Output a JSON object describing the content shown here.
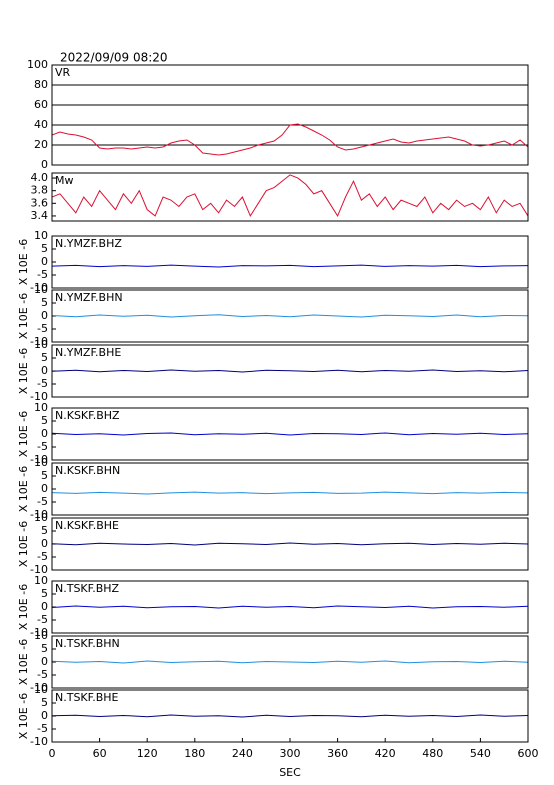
{
  "chart_data": [
    {
      "type": "line",
      "title": "2022/09/09 08:20",
      "panel_label": "VR",
      "grid": true,
      "xlim": [
        0,
        600
      ],
      "ylim": [
        0,
        100
      ],
      "yticks": [
        0,
        20,
        40,
        60,
        80,
        100
      ],
      "x": [
        0,
        10,
        20,
        30,
        40,
        50,
        60,
        70,
        80,
        90,
        100,
        110,
        120,
        130,
        140,
        150,
        160,
        170,
        180,
        190,
        200,
        210,
        220,
        230,
        240,
        250,
        260,
        270,
        280,
        290,
        300,
        310,
        320,
        330,
        340,
        350,
        360,
        370,
        380,
        390,
        400,
        410,
        420,
        430,
        440,
        450,
        460,
        470,
        480,
        490,
        500,
        510,
        520,
        530,
        540,
        550,
        560,
        570,
        580,
        590,
        600
      ],
      "series": [
        {
          "color": "#dd1133",
          "values": [
            30,
            33,
            31,
            30,
            28,
            25,
            17,
            16,
            17,
            17,
            16,
            17,
            18,
            17,
            18,
            22,
            24,
            25,
            20,
            12,
            11,
            10,
            11,
            13,
            15,
            17,
            20,
            22,
            24,
            30,
            40,
            41,
            38,
            34,
            30,
            25,
            18,
            15,
            16,
            18,
            20,
            22,
            24,
            26,
            23,
            22,
            24,
            25,
            26,
            27,
            28,
            26,
            24,
            20,
            19,
            20,
            22,
            24,
            20,
            25,
            18
          ]
        }
      ]
    },
    {
      "type": "line",
      "panel_label": "Mw",
      "grid": false,
      "xlim": [
        0,
        600
      ],
      "ylim": [
        3.32,
        4.08
      ],
      "yticks": [
        3.4,
        3.6,
        3.8,
        {
          "value": 4,
          "label": "4.0"
        }
      ],
      "x": [
        0,
        10,
        20,
        30,
        40,
        50,
        60,
        70,
        80,
        90,
        100,
        110,
        120,
        130,
        140,
        150,
        160,
        170,
        180,
        190,
        200,
        210,
        220,
        230,
        240,
        250,
        260,
        270,
        280,
        290,
        300,
        310,
        320,
        330,
        340,
        350,
        360,
        370,
        380,
        390,
        400,
        410,
        420,
        430,
        440,
        450,
        460,
        470,
        480,
        490,
        500,
        510,
        520,
        530,
        540,
        550,
        560,
        570,
        580,
        590,
        600
      ],
      "series": [
        {
          "color": "#dd1133",
          "values": [
            3.7,
            3.75,
            3.6,
            3.45,
            3.7,
            3.55,
            3.8,
            3.65,
            3.5,
            3.75,
            3.6,
            3.8,
            3.5,
            3.4,
            3.7,
            3.65,
            3.55,
            3.7,
            3.75,
            3.5,
            3.6,
            3.45,
            3.65,
            3.55,
            3.7,
            3.4,
            3.6,
            3.8,
            3.85,
            3.95,
            4.05,
            4.0,
            3.9,
            3.75,
            3.8,
            3.6,
            3.4,
            3.7,
            3.95,
            3.65,
            3.75,
            3.55,
            3.7,
            3.5,
            3.65,
            3.6,
            3.55,
            3.7,
            3.45,
            3.6,
            3.5,
            3.65,
            3.55,
            3.6,
            3.5,
            3.7,
            3.45,
            3.65,
            3.55,
            3.6,
            3.4
          ]
        }
      ]
    },
    {
      "type": "line",
      "panel_label": "N.YMZF.BHZ",
      "ylabel": "X 10E -6",
      "xlim": [
        0,
        600
      ],
      "ylim": [
        -10,
        10
      ],
      "yticks": [
        -10,
        -5,
        0,
        5,
        10
      ],
      "x": [
        0,
        30,
        60,
        90,
        120,
        150,
        180,
        210,
        240,
        270,
        300,
        330,
        360,
        390,
        420,
        450,
        480,
        510,
        540,
        570,
        600
      ],
      "series": [
        {
          "color": "#0000cc",
          "values": [
            -1.6,
            -1.3,
            -1.8,
            -1.4,
            -1.7,
            -1.2,
            -1.6,
            -1.9,
            -1.4,
            -1.5,
            -1.3,
            -1.8,
            -1.5,
            -1.2,
            -1.7,
            -1.4,
            -1.6,
            -1.3,
            -1.8,
            -1.5,
            -1.4
          ]
        }
      ]
    },
    {
      "type": "line",
      "panel_label": "N.YMZF.BHN",
      "ylabel": "X 10E -6",
      "xlim": [
        0,
        600
      ],
      "ylim": [
        -10,
        10
      ],
      "yticks": [
        -10,
        -5,
        0,
        5,
        10
      ],
      "x": [
        0,
        30,
        60,
        90,
        120,
        150,
        180,
        210,
        240,
        270,
        300,
        330,
        360,
        390,
        420,
        450,
        480,
        510,
        540,
        570,
        600
      ],
      "series": [
        {
          "color": "#1f8fe0",
          "values": [
            0.2,
            -0.3,
            0.4,
            -0.1,
            0.3,
            -0.4,
            0.1,
            0.5,
            -0.2,
            0.2,
            -0.3,
            0.4,
            0,
            -0.4,
            0.3,
            0.1,
            -0.2,
            0.4,
            -0.3,
            0.2,
            0.1
          ]
        }
      ]
    },
    {
      "type": "line",
      "panel_label": "N.YMZF.BHE",
      "ylabel": "X 10E -6",
      "xlim": [
        0,
        600
      ],
      "ylim": [
        -10,
        10
      ],
      "yticks": [
        -10,
        -5,
        0,
        5,
        10
      ],
      "x": [
        0,
        30,
        60,
        90,
        120,
        150,
        180,
        210,
        240,
        270,
        300,
        330,
        360,
        390,
        420,
        450,
        480,
        510,
        540,
        570,
        600
      ],
      "series": [
        {
          "color": "#000080",
          "values": [
            -0.1,
            0.3,
            -0.3,
            0.2,
            -0.2,
            0.4,
            -0.1,
            0.2,
            -0.4,
            0.3,
            0.1,
            -0.2,
            0.3,
            -0.3,
            0.2,
            -0.1,
            0.4,
            -0.2,
            0.1,
            -0.3,
            0.2
          ]
        }
      ]
    },
    {
      "type": "line",
      "panel_label": "N.KSKF.BHZ",
      "ylabel": "X 10E -6",
      "xlim": [
        0,
        600
      ],
      "ylim": [
        -10,
        10
      ],
      "yticks": [
        -10,
        -5,
        0,
        5,
        10
      ],
      "x": [
        0,
        30,
        60,
        90,
        120,
        150,
        180,
        210,
        240,
        270,
        300,
        330,
        360,
        390,
        420,
        450,
        480,
        510,
        540,
        570,
        600
      ],
      "series": [
        {
          "color": "#0000cc",
          "values": [
            0.3,
            -0.2,
            0.1,
            -0.4,
            0.2,
            0.4,
            -0.3,
            0.1,
            -0.1,
            0.3,
            -0.4,
            0.2,
            0.1,
            -0.2,
            0.4,
            -0.3,
            0.2,
            -0.1,
            0.3,
            -0.2,
            0.1
          ]
        }
      ]
    },
    {
      "type": "line",
      "panel_label": "N.KSKF.BHN",
      "ylabel": "X 10E -6",
      "xlim": [
        0,
        600
      ],
      "ylim": [
        -10,
        10
      ],
      "yticks": [
        -10,
        -5,
        0,
        5,
        10
      ],
      "x": [
        0,
        30,
        60,
        90,
        120,
        150,
        180,
        210,
        240,
        270,
        300,
        330,
        360,
        390,
        420,
        450,
        480,
        510,
        540,
        570,
        600
      ],
      "series": [
        {
          "color": "#1f8fe0",
          "values": [
            -1.4,
            -1.7,
            -1.3,
            -1.6,
            -1.9,
            -1.5,
            -1.2,
            -1.6,
            -1.4,
            -1.8,
            -1.5,
            -1.3,
            -1.7,
            -1.6,
            -1.2,
            -1.5,
            -1.8,
            -1.4,
            -1.6,
            -1.3,
            -1.5
          ]
        }
      ]
    },
    {
      "type": "line",
      "panel_label": "N.KSKF.BHE",
      "ylabel": "X 10E -6",
      "xlim": [
        0,
        600
      ],
      "ylim": [
        -10,
        10
      ],
      "yticks": [
        -10,
        -5,
        0,
        5,
        10
      ],
      "x": [
        0,
        30,
        60,
        90,
        120,
        150,
        180,
        210,
        240,
        270,
        300,
        330,
        360,
        390,
        420,
        450,
        480,
        510,
        540,
        570,
        600
      ],
      "series": [
        {
          "color": "#000080",
          "values": [
            0.1,
            -0.3,
            0.3,
            0,
            -0.2,
            0.2,
            -0.4,
            0.3,
            0.1,
            -0.2,
            0.4,
            -0.1,
            0.2,
            -0.3,
            0.1,
            0.3,
            -0.2,
            0.2,
            -0.1,
            0.3,
            0
          ]
        }
      ]
    },
    {
      "type": "line",
      "panel_label": "N.TSKF.BHZ",
      "ylabel": "X 10E -6",
      "xlim": [
        0,
        600
      ],
      "ylim": [
        -10,
        10
      ],
      "yticks": [
        -10,
        -5,
        0,
        5,
        10
      ],
      "x": [
        0,
        30,
        60,
        90,
        120,
        150,
        180,
        210,
        240,
        270,
        300,
        330,
        360,
        390,
        420,
        450,
        480,
        510,
        540,
        570,
        600
      ],
      "series": [
        {
          "color": "#0000cc",
          "values": [
            -0.2,
            0.4,
            -0.1,
            0.3,
            -0.3,
            0.1,
            0.2,
            -0.4,
            0.3,
            -0.1,
            0.2,
            -0.3,
            0.4,
            0.1,
            -0.2,
            0.3,
            -0.4,
            0.1,
            0.2,
            -0.1,
            0.3
          ]
        }
      ]
    },
    {
      "type": "line",
      "panel_label": "N.TSKF.BHN",
      "ylabel": "X 10E -6",
      "xlim": [
        0,
        600
      ],
      "ylim": [
        -10,
        10
      ],
      "yticks": [
        -10,
        -5,
        0,
        5,
        10
      ],
      "x": [
        0,
        30,
        60,
        90,
        120,
        150,
        180,
        210,
        240,
        270,
        300,
        330,
        360,
        390,
        420,
        450,
        480,
        510,
        540,
        570,
        600
      ],
      "series": [
        {
          "color": "#1f8fe0",
          "values": [
            0.3,
            -0.1,
            0.2,
            -0.4,
            0.4,
            -0.2,
            0.1,
            0.3,
            -0.3,
            0.2,
            0,
            -0.2,
            0.3,
            -0.1,
            0.4,
            -0.3,
            0.1,
            0.2,
            -0.2,
            0.3,
            -0.1
          ]
        }
      ]
    },
    {
      "type": "line",
      "panel_label": "N.TSKF.BHE",
      "ylabel": "X 10E -6",
      "xlabel": "SEC",
      "xlim": [
        0,
        600
      ],
      "ylim": [
        -10,
        10
      ],
      "yticks": [
        -10,
        -5,
        0,
        5,
        10
      ],
      "xticks": [
        0,
        60,
        120,
        180,
        240,
        300,
        360,
        420,
        480,
        540,
        600
      ],
      "x": [
        0,
        30,
        60,
        90,
        120,
        150,
        180,
        210,
        240,
        270,
        300,
        330,
        360,
        390,
        420,
        450,
        480,
        510,
        540,
        570,
        600
      ],
      "series": [
        {
          "color": "#000080",
          "values": [
            0.1,
            0.3,
            -0.2,
            0.2,
            -0.3,
            0.4,
            -0.1,
            0.1,
            -0.4,
            0.3,
            -0.2,
            0.2,
            0.1,
            -0.3,
            0.3,
            -0.1,
            0.2,
            -0.2,
            0.4,
            -0.1,
            0.2
          ]
        }
      ]
    }
  ]
}
